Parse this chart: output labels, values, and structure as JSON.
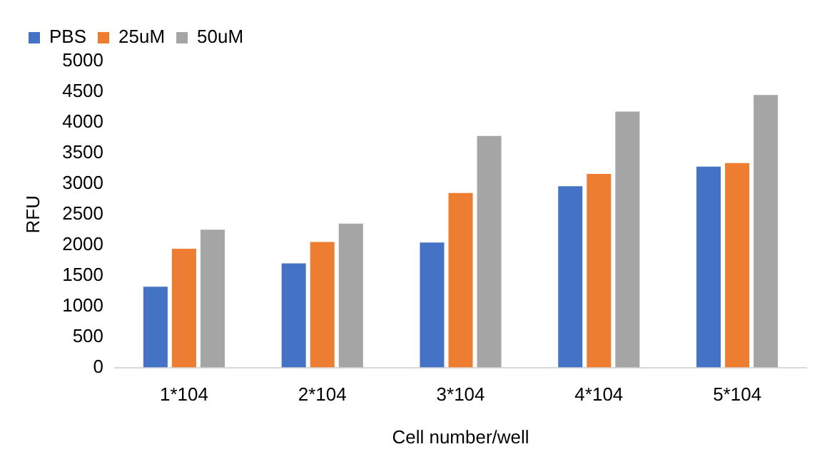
{
  "chart_data": {
    "type": "bar",
    "xlabel": "Cell number/well",
    "ylabel": "RFU",
    "categories": [
      "1*104",
      "2*104",
      "3*104",
      "4*104",
      "5*104"
    ],
    "series": [
      {
        "name": "PBS",
        "color": "#4472c4",
        "values": [
          1320,
          1700,
          2040,
          2960,
          3280
        ]
      },
      {
        "name": "25uM",
        "color": "#ed7d31",
        "values": [
          1940,
          2050,
          2850,
          3160,
          3340
        ]
      },
      {
        "name": "50uM",
        "color": "#a5a5a5",
        "values": [
          2250,
          2350,
          3780,
          4180,
          4450
        ]
      }
    ],
    "ylim": [
      0,
      5000
    ],
    "yticks": [
      0,
      500,
      1000,
      1500,
      2000,
      2500,
      3000,
      3500,
      4000,
      4500,
      5000
    ],
    "grid": false,
    "legend": "top left"
  }
}
